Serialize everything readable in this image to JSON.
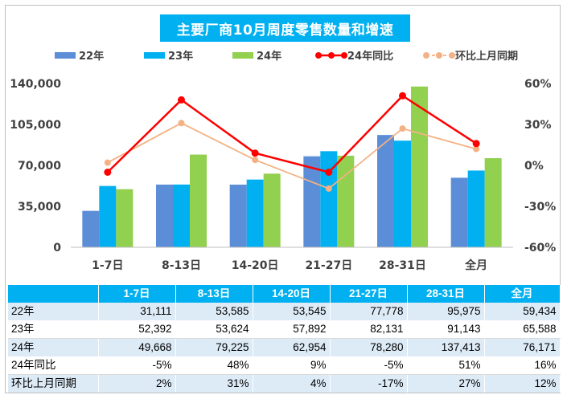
{
  "chart_data": {
    "type": "bar",
    "title": "主要厂商10月周度零售数量和增速",
    "categories": [
      "1-7日",
      "8-13日",
      "14-20日",
      "21-27日",
      "28-31日",
      "全月"
    ],
    "series": [
      {
        "name": "22年",
        "type": "bar",
        "color": "#5b8ed6",
        "values": [
          31111,
          53585,
          53545,
          77778,
          95975,
          59434
        ]
      },
      {
        "name": "23年",
        "type": "bar",
        "color": "#00b0f0",
        "values": [
          52392,
          53624,
          57892,
          82131,
          91143,
          65588
        ]
      },
      {
        "name": "24年",
        "type": "bar",
        "color": "#92d050",
        "values": [
          49668,
          79225,
          62954,
          78280,
          137413,
          76171
        ]
      },
      {
        "name": "24年同比",
        "type": "line",
        "axis": "right",
        "color": "#ff0000",
        "values": [
          -5,
          48,
          9,
          -5,
          51,
          16
        ]
      },
      {
        "name": "环比上月同期",
        "type": "line",
        "axis": "right",
        "color": "#f4b183",
        "values": [
          2,
          31,
          4,
          -17,
          27,
          12
        ]
      }
    ],
    "y_left": {
      "min": 0,
      "max": 140000,
      "ticks": [
        "0",
        "35,000",
        "70,000",
        "105,000",
        "140,000"
      ]
    },
    "y_right": {
      "min": -60,
      "max": 60,
      "ticks": [
        "-60%",
        "-30%",
        "0%",
        "30%",
        "60%"
      ]
    },
    "legend_position": "top",
    "grid": false
  },
  "table": {
    "headers": [
      "",
      "1-7日",
      "8-13日",
      "14-20日",
      "21-27日",
      "28-31日",
      "全月"
    ],
    "rows": [
      {
        "label": "22年",
        "cells": [
          "31,111",
          "53,585",
          "53,545",
          "77,778",
          "95,975",
          "59,434"
        ]
      },
      {
        "label": "23年",
        "cells": [
          "52,392",
          "53,624",
          "57,892",
          "82,131",
          "91,143",
          "65,588"
        ]
      },
      {
        "label": "24年",
        "cells": [
          "49,668",
          "79,225",
          "62,954",
          "78,280",
          "137,413",
          "76,171"
        ]
      },
      {
        "label": "24年同比",
        "cells": [
          "-5%",
          "48%",
          "9%",
          "-5%",
          "51%",
          "16%"
        ]
      },
      {
        "label": "环比上月同期",
        "cells": [
          "2%",
          "31%",
          "4%",
          "-17%",
          "27%",
          "12%"
        ]
      }
    ]
  }
}
